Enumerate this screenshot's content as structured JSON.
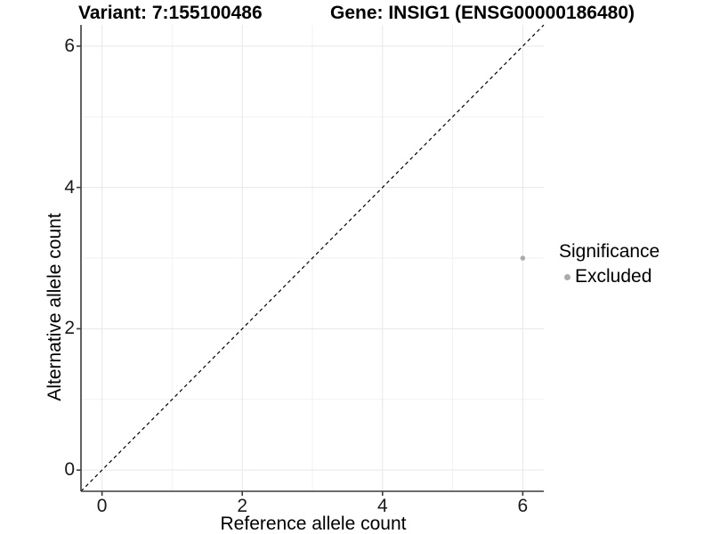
{
  "header": {
    "variant_title": "Variant: 7:155100486",
    "gene_title": "Gene: INSIG1 (ENSG00000186480)"
  },
  "chart_data": {
    "type": "scatter",
    "title_left": "Variant: 7:155100486",
    "title_right": "Gene: INSIG1 (ENSG00000186480)",
    "xlabel": "Reference allele count",
    "ylabel": "Alternative allele count",
    "xlim": [
      -0.3,
      6.3
    ],
    "ylim": [
      -0.3,
      6.3
    ],
    "x_ticks": [
      0,
      2,
      4,
      6
    ],
    "y_ticks": [
      0,
      2,
      4,
      6
    ],
    "x_minor_ticks": [
      1,
      3,
      5
    ],
    "y_minor_ticks": [
      1,
      3,
      5
    ],
    "grid": true,
    "points": [
      {
        "x": 6,
        "y": 3,
        "series": "Excluded"
      }
    ],
    "identity_line": {
      "slope": 1,
      "intercept": 0,
      "style": "dashed",
      "color": "#000000"
    },
    "legend": {
      "title": "Significance",
      "position": "right",
      "entries": [
        {
          "label": "Excluded",
          "color": "#ababab"
        }
      ]
    },
    "colors": {
      "point": "#ababab",
      "grid_major": "#e7e7e7",
      "grid_minor": "#f2f2f2",
      "axis_line": "#3c3c3c",
      "tick_mark": "#3c3c3c"
    }
  }
}
